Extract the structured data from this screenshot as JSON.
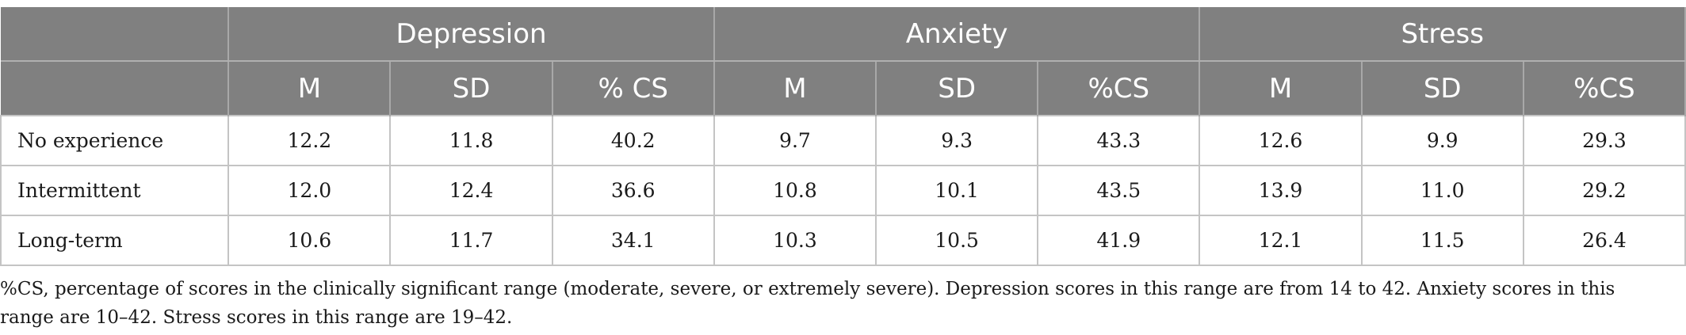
{
  "table": {
    "groups": [
      "Depression",
      "Anxiety",
      "Stress"
    ],
    "subheaders": [
      [
        "M",
        "SD",
        "% CS"
      ],
      [
        "M",
        "SD",
        "%CS"
      ],
      [
        "M",
        "SD",
        "%CS"
      ]
    ],
    "rows": [
      {
        "label": "No experience",
        "values": [
          "12.2",
          "11.8",
          "40.2",
          "9.7",
          "9.3",
          "43.3",
          "12.6",
          "9.9",
          "29.3"
        ]
      },
      {
        "label": "Intermittent",
        "values": [
          "12.0",
          "12.4",
          "36.6",
          "10.8",
          "10.1",
          "43.5",
          "13.9",
          "11.0",
          "29.2"
        ]
      },
      {
        "label": "Long-term",
        "values": [
          "10.6",
          "11.7",
          "34.1",
          "10.3",
          "10.5",
          "41.9",
          "12.1",
          "11.5",
          "26.4"
        ]
      }
    ]
  },
  "footnote": "%CS, percentage of scores in the clinically significant range (moderate, severe, or extremely severe). Depression scores in this range are from 14 to 42. Anxiety scores in this range are 10–42. Stress scores in this range are 19–42.",
  "colors": {
    "header_bg": "#808080",
    "header_text": "#ffffff",
    "grid": "#c4c4c4"
  }
}
